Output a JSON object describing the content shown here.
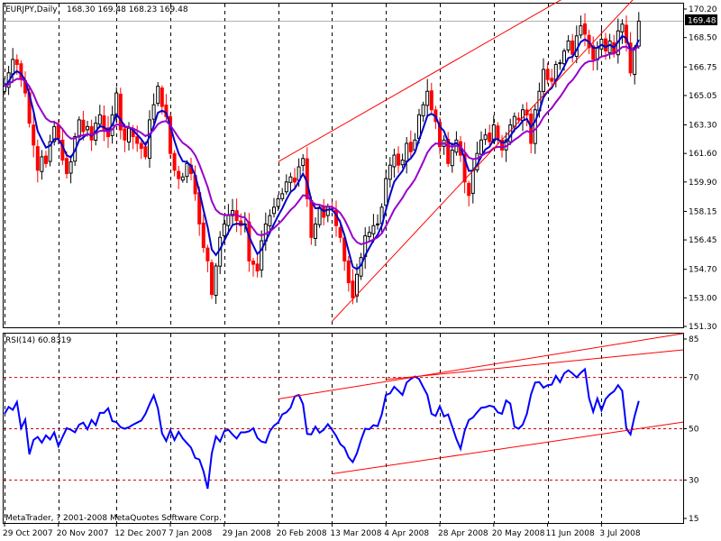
{
  "app": "MetaTrader",
  "main_header": {
    "symbol_label": "EURJPY,Daily",
    "ohlc_text": "168.30 169.48 168.23 169.48",
    "last_price_label": "169.48"
  },
  "rsi_header": {
    "label": "RSI(14) 60.8319"
  },
  "copyright": "MetaTrader, ? 2001-2008 MetaQuotes Software Corp.",
  "colors": {
    "up_candle": "#000000",
    "down_candle": "#ff0000",
    "fast_ma": "#0000cc",
    "slow_ma": "#9900cc",
    "rsi_line": "#0000ff",
    "trendline": "#ff0000",
    "grid": "#000000",
    "level_line": "#cc0000"
  },
  "chart_data": [
    {
      "type": "candlestick",
      "symbol": "EURJPY",
      "timeframe": "Daily",
      "ylim": [
        151.3,
        170.2
      ],
      "y_ticks": [
        "170.20",
        "168.50",
        "166.75",
        "165.05",
        "163.30",
        "161.60",
        "159.90",
        "158.15",
        "156.45",
        "154.70",
        "153.00",
        "151.30"
      ],
      "x_tick_labels": [
        "29 Oct 2007",
        "20 Nov 2007",
        "12 Dec 2007",
        "7 Jan 2008",
        "29 Jan 2008",
        "20 Feb 2008",
        "13 Mar 2008",
        "4 Apr 2008",
        "28 Apr 2008",
        "20 May 2008",
        "11 Jun 2008",
        "3 Jul 2008"
      ],
      "grid": true,
      "closes_approx": [
        165.6,
        166.4,
        167.2,
        166.9,
        166.0,
        165.2,
        163.4,
        162.1,
        160.6,
        161.4,
        161.0,
        162.3,
        163.2,
        162.5,
        161.2,
        160.4,
        161.1,
        162.6,
        163.6,
        162.9,
        163.2,
        162.4,
        163.4,
        163.9,
        163.0,
        162.6,
        163.9,
        165.2,
        163.0,
        162.4,
        163.1,
        162.6,
        162.2,
        161.9,
        161.4,
        163.6,
        164.5,
        165.6,
        164.4,
        163.8,
        161.6,
        160.6,
        160.1,
        160.2,
        161.0,
        160.4,
        159.2,
        157.4,
        156.0,
        155.2,
        153.2,
        154.9,
        156.6,
        157.4,
        157.9,
        158.2,
        157.6,
        157.3,
        157.4,
        155.2,
        155.0,
        154.6,
        156.4,
        157.4,
        157.9,
        158.4,
        158.9,
        159.2,
        159.9,
        160.2,
        159.9,
        160.8,
        161.3,
        158.9,
        156.6,
        157.4,
        158.4,
        157.8,
        158.4,
        158.3,
        157.3,
        156.6,
        155.2,
        153.9,
        153.0,
        154.4,
        155.4,
        156.7,
        156.9,
        157.3,
        157.4,
        158.4,
        160.1,
        160.9,
        161.5,
        160.9,
        161.2,
        162.2,
        161.7,
        162.4,
        163.9,
        164.5,
        165.3,
        164.2,
        163.5,
        162.0,
        162.4,
        161.0,
        161.8,
        162.4,
        161.5,
        159.9,
        159.1,
        160.6,
        161.6,
        162.4,
        162.7,
        162.3,
        163.3,
        162.5,
        161.8,
        162.4,
        163.3,
        163.8,
        163.6,
        164.2,
        163.9,
        162.2,
        164.2,
        165.3,
        166.6,
        166.0,
        165.9,
        166.9,
        167.0,
        167.7,
        168.3,
        167.5,
        168.6,
        169.2,
        168.7,
        167.9,
        167.2,
        167.9,
        168.4,
        167.7,
        168.3,
        167.6,
        168.9,
        169.3,
        168.2,
        166.4,
        167.9,
        169.48
      ],
      "moving_averages": [
        {
          "name": "fast",
          "color": "#0000cc"
        },
        {
          "name": "slow",
          "color": "#9900cc"
        }
      ],
      "trendlines": [
        {
          "from": [
            "20 Feb 2008",
            161.1
          ],
          "to": [
            "3 Jul 2008",
            170.5
          ]
        },
        {
          "from": [
            "13 Mar 2008",
            151.6
          ],
          "to": [
            "3 Jul 2008",
            166.6
          ]
        }
      ]
    },
    {
      "type": "line",
      "indicator": "RSI(14)",
      "last_value": 60.8319,
      "ylim": [
        15,
        85
      ],
      "y_ticks": [
        "85",
        "70",
        "50",
        "30",
        "15"
      ],
      "levels": [
        70,
        50,
        30
      ],
      "values_approx": [
        55.8,
        58.5,
        57.4,
        60.4,
        50.2,
        53.6,
        40.0,
        45.6,
        46.8,
        44.6,
        47.4,
        45.8,
        48.6,
        43.2,
        46.8,
        50.2,
        49.6,
        48.6,
        51.6,
        52.4,
        49.8,
        53.4,
        51.4,
        56.2,
        56.2,
        58.0,
        53.0,
        52.6,
        50.6,
        50.0,
        50.6,
        51.6,
        52.4,
        53.2,
        55.8,
        59.6,
        63.0,
        58.0,
        48.2,
        45.2,
        49.4,
        45.6,
        48.8,
        46.2,
        44.4,
        42.6,
        38.6,
        38.0,
        33.4,
        26.6,
        40.4,
        47.0,
        45.0,
        49.0,
        49.6,
        47.8,
        46.2,
        48.6,
        48.6,
        49.0,
        50.2,
        46.4,
        45.0,
        44.6,
        49.0,
        51.2,
        52.4,
        55.6,
        56.4,
        58.2,
        62.6,
        63.2,
        59.6,
        48.0,
        47.8,
        50.8,
        48.4,
        49.6,
        51.8,
        49.6,
        47.2,
        44.0,
        42.6,
        38.8,
        37.0,
        40.4,
        45.6,
        50.0,
        49.8,
        51.4,
        51.0,
        55.6,
        63.2,
        63.8,
        66.4,
        64.8,
        63.2,
        68.0,
        69.4,
        70.4,
        69.4,
        66.2,
        63.2,
        55.8,
        55.0,
        58.8,
        54.8,
        55.6,
        50.8,
        46.0,
        42.2,
        49.2,
        53.4,
        54.4,
        56.4,
        58.2,
        58.4,
        59.0,
        58.6,
        56.4,
        55.8,
        61.0,
        59.8,
        50.8,
        50.0,
        51.6,
        55.8,
        63.4,
        68.0,
        68.2,
        66.0,
        67.0,
        67.2,
        70.6,
        68.2,
        71.6,
        72.8,
        71.6,
        70.0,
        71.8,
        73.2,
        62.0,
        56.6,
        61.8,
        57.2,
        61.6,
        63.4,
        64.6,
        67.0,
        64.8,
        50.0,
        47.8,
        55.0,
        60.8319
      ],
      "trendlines": [
        {
          "from": [
            "20 Feb 2008",
            61.6
          ],
          "to": [
            "3 Jul 2008",
            82.0
          ]
        },
        {
          "from": [
            "13 Mar 2008",
            32.4
          ],
          "to": [
            "3 Jul 2008",
            47.9
          ]
        },
        {
          "from": [
            "4 Apr 2008",
            69.2
          ],
          "to": [
            "3 Jul 2008",
            77.6
          ]
        }
      ]
    }
  ]
}
